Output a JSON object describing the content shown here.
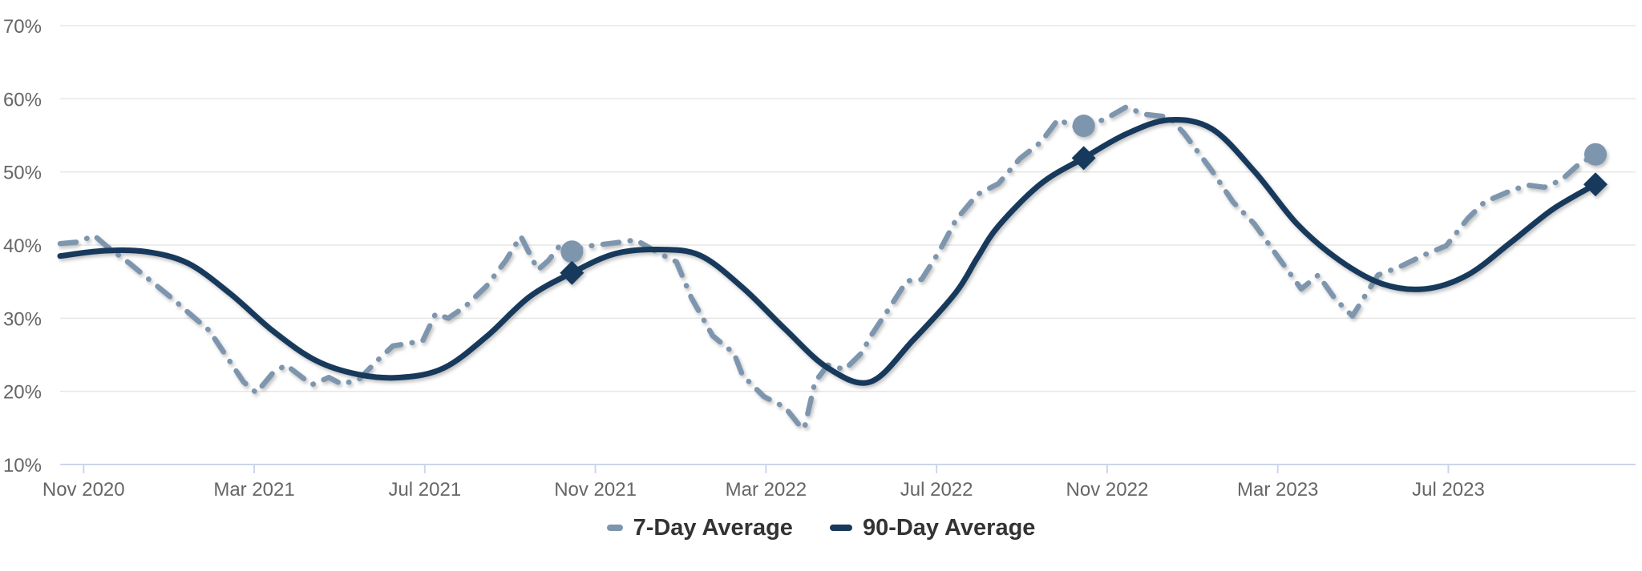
{
  "chart_data": {
    "type": "line",
    "title": "",
    "xlabel": "",
    "ylabel": "",
    "grid": true,
    "legend_position": "bottom",
    "ylim": [
      10,
      70
    ],
    "y_ticks": [
      {
        "label": "70%",
        "value": 70
      },
      {
        "label": "60%",
        "value": 60
      },
      {
        "label": "50%",
        "value": 50
      },
      {
        "label": "40%",
        "value": 40
      },
      {
        "label": "30%",
        "value": 30
      },
      {
        "label": "20%",
        "value": 20
      },
      {
        "label": "10%",
        "value": 10
      }
    ],
    "x_ticks": [
      {
        "label": "Nov 2020",
        "pos": 0.55
      },
      {
        "label": "Mar 2021",
        "pos": 4.55
      },
      {
        "label": "Jul 2021",
        "pos": 8.55
      },
      {
        "label": "Nov 2021",
        "pos": 12.55
      },
      {
        "label": "Mar 2022",
        "pos": 16.55
      },
      {
        "label": "Jul 2022",
        "pos": 20.55
      },
      {
        "label": "Nov 2022",
        "pos": 24.55
      },
      {
        "label": "Mar 2023",
        "pos": 28.55
      },
      {
        "label": "Jul 2023",
        "pos": 32.55
      }
    ],
    "x_definition": "x = months elapsed since the first plotted point (mid-Oct 2020); series end mid-Oct 2023; values are percentages",
    "series": [
      {
        "name": "7-Day Average",
        "color": "#7d96ae",
        "line_style": "dash-dot",
        "x": [
          0,
          0.4,
          0.8,
          1.1,
          1.65,
          2.0,
          2.65,
          3.0,
          3.5,
          4.0,
          4.3,
          4.6,
          5.0,
          5.3,
          5.9,
          6.3,
          6.6,
          7.0,
          7.4,
          7.8,
          8.5,
          8.8,
          9.1,
          9.5,
          10.0,
          10.45,
          10.8,
          11.2,
          11.45,
          11.75,
          12.0,
          12.3,
          13.0,
          13.5,
          14.0,
          14.45,
          14.8,
          15.3,
          15.8,
          16.0,
          16.5,
          17.0,
          17.3,
          17.45,
          17.7,
          18.0,
          18.4,
          18.8,
          19.0,
          19.5,
          19.85,
          20.2,
          20.6,
          21.0,
          21.5,
          22.0,
          22.5,
          23.0,
          23.4,
          23.75,
          24.0,
          24.5,
          25.0,
          25.4,
          26.0,
          26.35,
          27.0,
          27.5,
          28.0,
          28.6,
          29.1,
          29.5,
          29.9,
          30.3,
          30.9,
          31.4,
          32.0,
          32.5,
          33.0,
          33.4,
          34.0,
          34.4,
          34.8,
          35.2,
          35.6,
          36.0
        ],
        "values": [
          40.2,
          40.4,
          41.3,
          39.8,
          37.4,
          35.7,
          32.6,
          30.8,
          28.3,
          23.9,
          21.3,
          19.8,
          22.6,
          23.6,
          20.9,
          21.9,
          21.0,
          21.6,
          24.0,
          26.2,
          26.9,
          30.6,
          30.0,
          31.6,
          34.4,
          37.9,
          41.2,
          36.6,
          37.9,
          40.2,
          39.1,
          39.8,
          40.3,
          40.7,
          39.0,
          37.7,
          32.8,
          27.6,
          25.2,
          22.2,
          19.3,
          17.8,
          15.6,
          14.9,
          21.3,
          23.6,
          23.0,
          25.3,
          27.5,
          31.9,
          35.1,
          35.3,
          39.0,
          43.4,
          46.9,
          48.4,
          51.8,
          54.1,
          57.2,
          56.2,
          56.3,
          57.2,
          58.9,
          57.9,
          57.5,
          55.3,
          50.2,
          45.9,
          42.9,
          38.0,
          34.0,
          35.9,
          32.6,
          30.3,
          35.9,
          37.0,
          38.7,
          39.9,
          43.6,
          45.9,
          47.4,
          48.2,
          47.9,
          48.9,
          51.0,
          52.4
        ]
      },
      {
        "name": "90-Day Average",
        "color": "#17395c",
        "line_style": "solid",
        "x": [
          0,
          1,
          2,
          3,
          4,
          5,
          6,
          7,
          8,
          9,
          10,
          11,
          12,
          13,
          14,
          15,
          16,
          17,
          18,
          19,
          20,
          21,
          21.5,
          22,
          23,
          24,
          25,
          26,
          27,
          28,
          29,
          30,
          31,
          32,
          33,
          34,
          35,
          36
        ],
        "values": [
          38.5,
          39.2,
          39.1,
          37.5,
          33.3,
          28.2,
          24.2,
          22.3,
          21.9,
          23.2,
          27.5,
          32.9,
          36.2,
          38.8,
          39.4,
          38.6,
          34.2,
          28.5,
          23.2,
          21.3,
          27.0,
          33.5,
          38.2,
          42.6,
          48.4,
          51.9,
          55.2,
          57.1,
          55.9,
          50.1,
          42.9,
          37.9,
          34.7,
          34.0,
          35.9,
          40.3,
          44.9,
          48.3
        ]
      }
    ],
    "markers": [
      {
        "series": "7-Day Average",
        "shape": "circle",
        "x": 12,
        "value": 39.1
      },
      {
        "series": "90-Day Average",
        "shape": "diamond",
        "x": 12,
        "value": 36.2
      },
      {
        "series": "7-Day Average",
        "shape": "circle",
        "x": 24,
        "value": 56.3
      },
      {
        "series": "90-Day Average",
        "shape": "diamond",
        "x": 24,
        "value": 51.9
      },
      {
        "series": "7-Day Average",
        "shape": "circle",
        "x": 36,
        "value": 52.4
      },
      {
        "series": "90-Day Average",
        "shape": "diamond",
        "x": 36,
        "value": 48.3
      }
    ],
    "colors": {
      "background": "#ffffff",
      "gridline": "#e6e6e6",
      "axis_line": "#ccd6eb",
      "tick_label": "#666666",
      "legend_text": "#333333",
      "series_7day": "#7d96ae",
      "series_90day": "#17395c"
    }
  }
}
